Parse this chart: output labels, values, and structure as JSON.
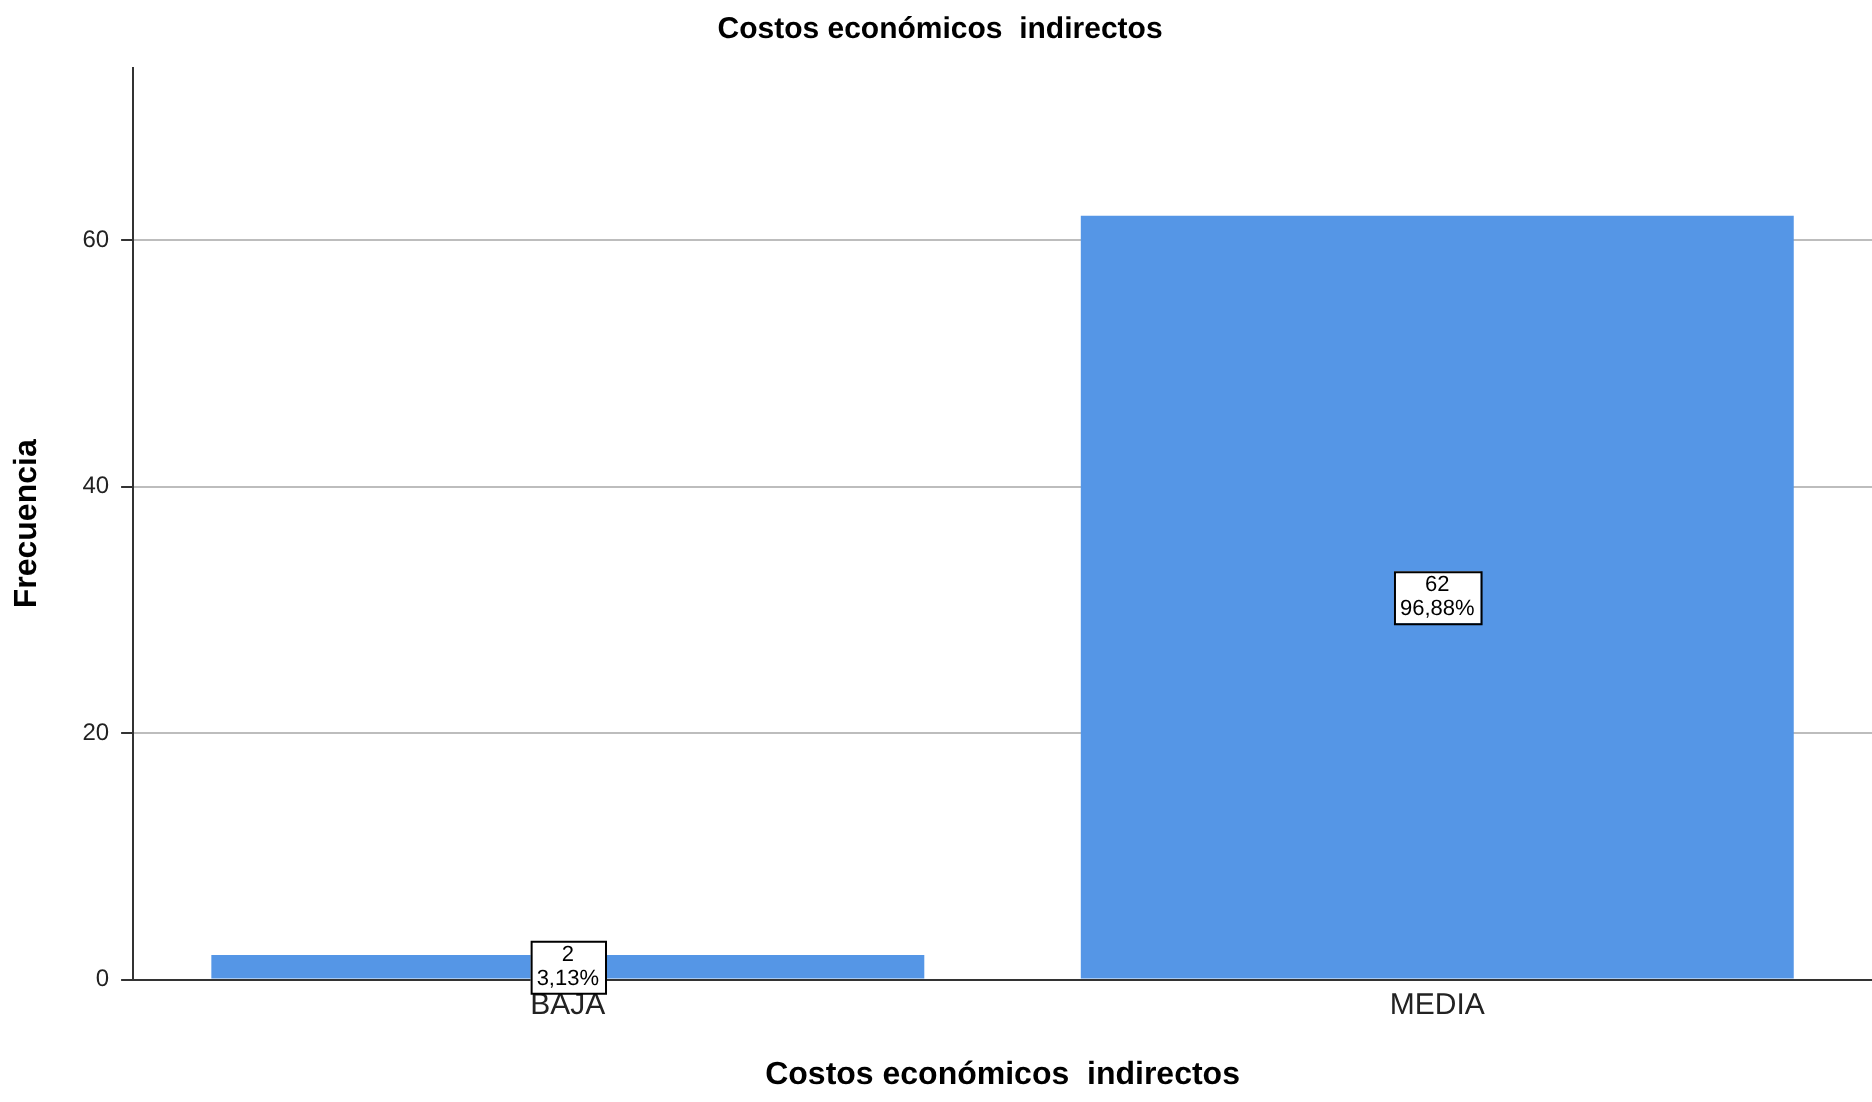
{
  "chart_data": {
    "type": "bar",
    "title": "Costos económicos  indirectos",
    "xlabel": "Costos económicos  indirectos",
    "ylabel": "Frecuencia",
    "categories": [
      "BAJA",
      "MEDIA"
    ],
    "values": [
      2,
      62
    ],
    "color": "#5596e6",
    "value_labels": [
      "2\n3,13%",
      "62\n96,88%"
    ],
    "ylim": [
      0,
      74
    ],
    "yticks": [
      0,
      20,
      40,
      60
    ],
    "grid": "y",
    "legend": false
  }
}
